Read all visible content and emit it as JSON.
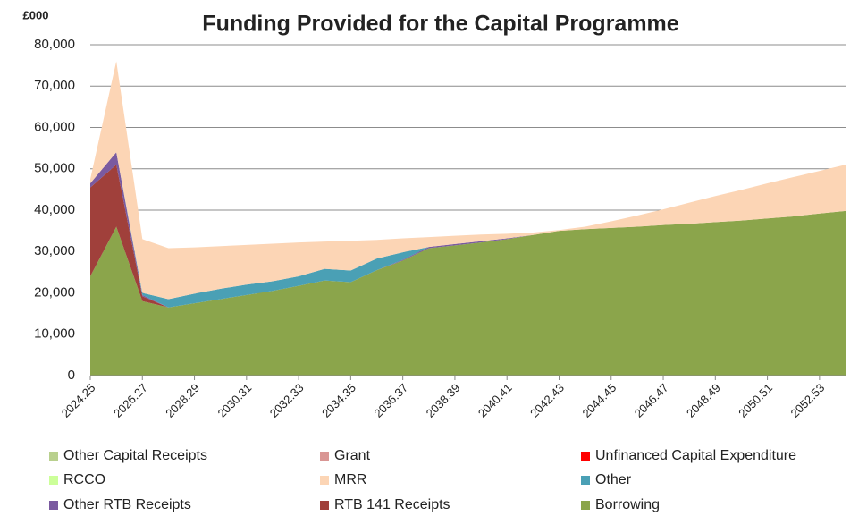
{
  "chart_data": {
    "type": "stacked_area",
    "title": "Funding Provided for the Capital Programme",
    "y_label": "£000",
    "categories": [
      "2024.25",
      null,
      "2026.27",
      null,
      "2028.29",
      null,
      "2030.31",
      null,
      "2032.33",
      null,
      "2034.35",
      null,
      "2036.37",
      null,
      "2038.39",
      null,
      "2040.41",
      null,
      "2042.43",
      null,
      "2044.45",
      null,
      "2046.47",
      null,
      "2048.49",
      null,
      "2050.51",
      null,
      "2052.53",
      null
    ],
    "ylim": [
      0,
      80000
    ],
    "yticks": [
      0,
      {
        "value": 10000,
        "label": "10,000"
      },
      {
        "value": 20000,
        "label": "20,000"
      },
      {
        "value": 30000,
        "label": "30,000"
      },
      {
        "value": 40000,
        "label": "40,000"
      },
      {
        "value": 50000,
        "label": "50,000"
      },
      {
        "value": 60000,
        "label": "60,000"
      },
      {
        "value": 70000,
        "label": "70,000"
      },
      {
        "value": 80000,
        "label": "80,000"
      }
    ],
    "grid": true,
    "legend": "bottom",
    "series": [
      {
        "name": "Other Capital Receipts",
        "color": "#b9d08e",
        "values": [
          0,
          0,
          0,
          0,
          0,
          0,
          0,
          0,
          0,
          0,
          0,
          0,
          0,
          0,
          0,
          0,
          0,
          0,
          0,
          0,
          0,
          0,
          0,
          0,
          0,
          0,
          0,
          0,
          0,
          0
        ]
      },
      {
        "name": "Grant",
        "color": "#d99694",
        "values": [
          0,
          0,
          0,
          0,
          0,
          0,
          0,
          0,
          0,
          0,
          0,
          0,
          0,
          0,
          0,
          0,
          0,
          0,
          0,
          0,
          0,
          0,
          0,
          0,
          0,
          0,
          0,
          0,
          0,
          0
        ]
      },
      {
        "name": "Unfinanced Capital Expenditure",
        "color": "#ff0000",
        "values": [
          0,
          0,
          0,
          0,
          0,
          0,
          0,
          0,
          0,
          0,
          0,
          0,
          0,
          0,
          0,
          0,
          0,
          0,
          0,
          0,
          0,
          0,
          0,
          0,
          0,
          0,
          0,
          0,
          0,
          0
        ]
      },
      {
        "name": "RCCO",
        "color": "#ccff99",
        "values": [
          0,
          0,
          0,
          0,
          0,
          0,
          0,
          0,
          0,
          0,
          0,
          0,
          0,
          0,
          0,
          0,
          0,
          0,
          0,
          0,
          0,
          0,
          0,
          0,
          0,
          0,
          0,
          0,
          0,
          0
        ]
      },
      {
        "name": "MRR",
        "color": "#fcd5b5",
        "values": [
          1000,
          22000,
          13000,
          12300,
          11200,
          10300,
          9600,
          9100,
          8200,
          6600,
          7200,
          4500,
          3400,
          2400,
          2000,
          1600,
          1100,
          600,
          200,
          600,
          1600,
          2700,
          3800,
          5100,
          6300,
          7400,
          8500,
          9500,
          10300,
          11200
        ]
      },
      {
        "name": "Other",
        "color": "#4aa0b5",
        "values": [
          0,
          0,
          500,
          2000,
          2300,
          2500,
          2500,
          2300,
          2300,
          2800,
          2800,
          2800,
          1800,
          0,
          0,
          0,
          0,
          0,
          0,
          0,
          0,
          0,
          0,
          0,
          0,
          0,
          0,
          0,
          0,
          0
        ]
      },
      {
        "name": "Other RTB Receipts",
        "color": "#7a5aa0",
        "values": [
          1000,
          3000,
          300,
          0,
          0,
          0,
          0,
          0,
          0,
          0,
          0,
          0,
          200,
          300,
          300,
          300,
          200,
          0,
          0,
          0,
          0,
          0,
          0,
          0,
          0,
          0,
          0,
          0,
          0,
          0
        ]
      },
      {
        "name": "RTB 141 Receipts",
        "color": "#a0403b",
        "values": [
          21500,
          15000,
          1200,
          0,
          0,
          0,
          0,
          0,
          0,
          0,
          0,
          0,
          0,
          0,
          0,
          0,
          0,
          0,
          0,
          0,
          0,
          0,
          0,
          0,
          0,
          0,
          0,
          0,
          0,
          0
        ]
      },
      {
        "name": "Borrowing",
        "color": "#8ba54b",
        "values": [
          24000,
          36000,
          18000,
          16500,
          17500,
          18500,
          19500,
          20500,
          21700,
          23000,
          22600,
          25500,
          27800,
          30800,
          31500,
          32200,
          33000,
          34000,
          35000,
          35400,
          35700,
          36000,
          36400,
          36700,
          37100,
          37500,
          38000,
          38500,
          39200,
          39800
        ]
      }
    ]
  }
}
